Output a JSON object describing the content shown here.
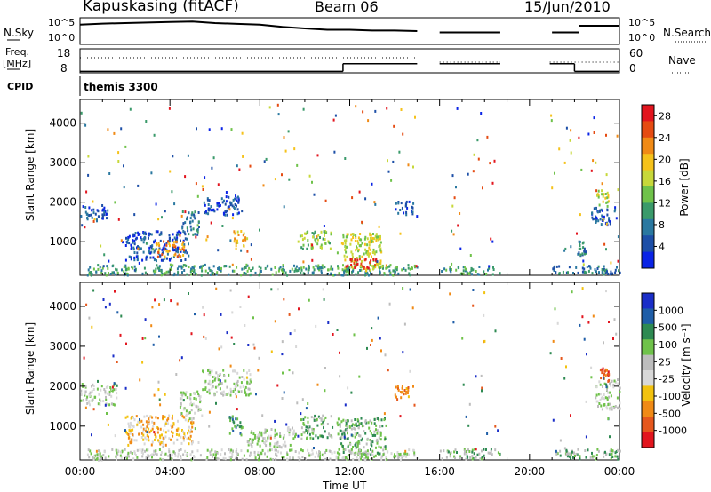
{
  "header": {
    "station": "Kapuskasing (fitACF)",
    "beam": "Beam 06",
    "date": "15/Jun/2010"
  },
  "top_panels": {
    "nsky_label": "N.Sky",
    "nsky_ticks": [
      "10^5",
      "10^0"
    ],
    "nsearch_label": "N.Search",
    "nsearch_ticks": [
      "10^5",
      "10^0"
    ],
    "freq_label_1": "Freq.",
    "freq_label_2": "[MHz]",
    "freq_ticks": [
      "18",
      "8"
    ],
    "nave_label": "Nave",
    "nave_ticks": [
      "60",
      "0"
    ],
    "cpid_label": "CPID",
    "cpid_text": "themis 3300"
  },
  "colors": {
    "power_scale": [
      "#0a24e6",
      "#1d4fa7",
      "#2a78a0",
      "#3a9a6a",
      "#6fc24a",
      "#c7d83a",
      "#f5c21b",
      "#f08a16",
      "#e54b12",
      "#e2151e"
    ],
    "velocity_scale": [
      "#1a2ec8",
      "#1f5ea8",
      "#2e8a52",
      "#6fc24a",
      "#bdbdbd",
      "#d8d8d8",
      "#f2c20f",
      "#f08a16",
      "#e5571d",
      "#e2151e"
    ]
  },
  "chart_data": [
    {
      "type": "heatmap",
      "name": "power-panel",
      "ylabel": "Slant Range [km]",
      "xlabel": "",
      "x_ticks": [],
      "y_ticks": [
        "1000",
        "2000",
        "3000",
        "4000"
      ],
      "y_tick_values": [
        1000,
        2000,
        3000,
        4000
      ],
      "ylim": [
        150,
        4600
      ],
      "xlim": [
        0,
        24
      ],
      "colorbar_label": "Power [dB]",
      "colorbar_ticks": [
        "4",
        "8",
        "12",
        "16",
        "20",
        "24",
        "28"
      ],
      "colorbar_range": [
        0,
        30
      ],
      "data_gaps_hours": [
        [
          15.0,
          16.0
        ],
        [
          18.7,
          20.9
        ]
      ],
      "regions": [
        {
          "t": [
            0.0,
            1.2
          ],
          "r": [
            1550,
            1950
          ],
          "level": 1
        },
        {
          "t": [
            0.3,
            15.0
          ],
          "r": [
            180,
            450
          ],
          "level": 3
        },
        {
          "t": [
            2.0,
            4.8
          ],
          "r": [
            550,
            1300
          ],
          "level": 1
        },
        {
          "t": [
            3.3,
            4.6
          ],
          "r": [
            650,
            1050
          ],
          "level": 7
        },
        {
          "t": [
            4.5,
            5.3
          ],
          "r": [
            1200,
            1800
          ],
          "level": 2
        },
        {
          "t": [
            5.5,
            7.2
          ],
          "r": [
            1700,
            2200
          ],
          "level": 1
        },
        {
          "t": [
            6.8,
            7.4
          ],
          "r": [
            900,
            1300
          ],
          "level": 6
        },
        {
          "t": [
            9.8,
            11.2
          ],
          "r": [
            850,
            1300
          ],
          "level": 4
        },
        {
          "t": [
            11.6,
            13.4
          ],
          "r": [
            300,
            1250
          ],
          "level": 5
        },
        {
          "t": [
            11.8,
            13.2
          ],
          "r": [
            350,
            600
          ],
          "level": 9
        },
        {
          "t": [
            13.9,
            14.8
          ],
          "r": [
            1700,
            2050
          ],
          "level": 1
        },
        {
          "t": [
            16.0,
            18.7
          ],
          "r": [
            200,
            400
          ],
          "level": 3
        },
        {
          "t": [
            21.0,
            24.0
          ],
          "r": [
            200,
            420
          ],
          "level": 2
        },
        {
          "t": [
            22.1,
            22.5
          ],
          "r": [
            650,
            1050
          ],
          "level": 2
        },
        {
          "t": [
            22.7,
            23.9
          ],
          "r": [
            1450,
            1900
          ],
          "level": 1
        },
        {
          "t": [
            23.0,
            23.5
          ],
          "r": [
            1900,
            2400
          ],
          "level": 5
        }
      ]
    },
    {
      "type": "heatmap",
      "name": "velocity-panel",
      "ylabel": "Slant Range [km]",
      "xlabel": "Time UT",
      "x_ticks": [
        "00:00",
        "04:00",
        "08:00",
        "12:00",
        "16:00",
        "20:00",
        "00:00"
      ],
      "x_tick_values": [
        0,
        4,
        8,
        12,
        16,
        20,
        24
      ],
      "y_ticks": [
        "1000",
        "2000",
        "3000",
        "4000"
      ],
      "y_tick_values": [
        1000,
        2000,
        3000,
        4000
      ],
      "ylim": [
        150,
        4600
      ],
      "xlim": [
        0,
        24
      ],
      "colorbar_label": "Velocity [m s⁻¹]",
      "colorbar_ticks": [
        "1000",
        "500",
        "100",
        "25",
        "-25",
        "-100",
        "-500",
        "-1000"
      ],
      "data_gaps_hours": [
        [
          15.0,
          16.0
        ],
        [
          18.7,
          20.9
        ]
      ],
      "regions": [
        {
          "t": [
            0.0,
            1.6
          ],
          "r": [
            1550,
            2100
          ],
          "level": 4
        },
        {
          "t": [
            0.3,
            15.0
          ],
          "r": [
            180,
            450
          ],
          "level": 4
        },
        {
          "t": [
            2.0,
            5.0
          ],
          "r": [
            550,
            1300
          ],
          "level": 6
        },
        {
          "t": [
            4.4,
            5.4
          ],
          "r": [
            1200,
            1900
          ],
          "level": 4
        },
        {
          "t": [
            5.4,
            7.6
          ],
          "r": [
            1800,
            2450
          ],
          "level": 4
        },
        {
          "t": [
            6.6,
            7.2
          ],
          "r": [
            800,
            1300
          ],
          "level": 2
        },
        {
          "t": [
            7.4,
            9.6
          ],
          "r": [
            500,
            1000
          ],
          "level": 4
        },
        {
          "t": [
            9.8,
            11.2
          ],
          "r": [
            700,
            1300
          ],
          "level": 3
        },
        {
          "t": [
            11.4,
            13.6
          ],
          "r": [
            300,
            1250
          ],
          "level": 3
        },
        {
          "t": [
            13.9,
            14.8
          ],
          "r": [
            1700,
            2050
          ],
          "level": 7
        },
        {
          "t": [
            16.0,
            18.7
          ],
          "r": [
            200,
            450
          ],
          "level": 3
        },
        {
          "t": [
            21.0,
            24.0
          ],
          "r": [
            200,
            450
          ],
          "level": 3
        },
        {
          "t": [
            22.9,
            24.0
          ],
          "r": [
            1450,
            2200
          ],
          "level": 4
        },
        {
          "t": [
            23.1,
            23.5
          ],
          "r": [
            2100,
            2500
          ],
          "level": 8
        }
      ]
    }
  ],
  "nsky_series": [
    {
      "t": [
        0,
        1,
        2,
        3,
        4,
        5,
        6,
        7,
        8,
        9,
        10,
        11,
        12,
        13,
        14,
        15
      ],
      "v": [
        0.74,
        0.78,
        0.8,
        0.82,
        0.84,
        0.86,
        0.8,
        0.77,
        0.74,
        0.66,
        0.6,
        0.55,
        0.55,
        0.52,
        0.52,
        0.5
      ]
    }
  ],
  "freq_series": [
    {
      "t": [
        0,
        11.7,
        11.7,
        15,
        16,
        18.7,
        20.9,
        22.0,
        22.0,
        24
      ],
      "v": [
        8.6,
        8.6,
        11.8,
        11.8,
        11.8,
        11.8,
        11.8,
        11.8,
        8.6,
        8.6
      ]
    }
  ]
}
